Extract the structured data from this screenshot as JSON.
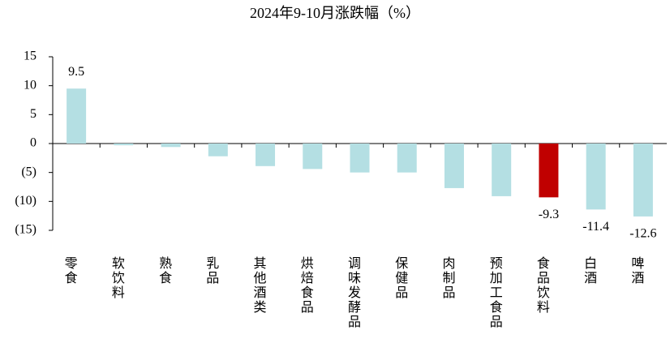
{
  "chart_data": {
    "type": "bar",
    "title": "2024年9-10月涨跌幅（%）",
    "categories": [
      "零食",
      "软饮料",
      "熟食",
      "乳品",
      "其他酒类",
      "烘焙食品",
      "调味发酵品",
      "保健品",
      "肉制品",
      "预加工食品",
      "食品饮料",
      "白酒",
      "啤酒"
    ],
    "values": [
      9.5,
      -0.3,
      -0.6,
      -2.2,
      -3.9,
      -4.4,
      -5.0,
      -5.0,
      -7.7,
      -9.1,
      -9.3,
      -11.4,
      -12.6
    ],
    "value_labels": [
      "9.5",
      null,
      null,
      null,
      null,
      null,
      null,
      null,
      null,
      null,
      "-9.3",
      "-11.4",
      "-12.6"
    ],
    "colors": [
      "#b4dfe3",
      "#b4dfe3",
      "#b4dfe3",
      "#b4dfe3",
      "#b4dfe3",
      "#b4dfe3",
      "#b4dfe3",
      "#b4dfe3",
      "#b4dfe3",
      "#b4dfe3",
      "#c00000",
      "#b4dfe3",
      "#b4dfe3"
    ],
    "ylim": [
      -15,
      15
    ],
    "yticks": [
      15,
      10,
      5,
      0,
      {
        "value": -5,
        "label": "(5)"
      },
      {
        "value": -10,
        "label": "(10)"
      },
      {
        "value": -15,
        "label": "(15)"
      }
    ],
    "negative_tick_color": "#e00000",
    "grid": false
  }
}
